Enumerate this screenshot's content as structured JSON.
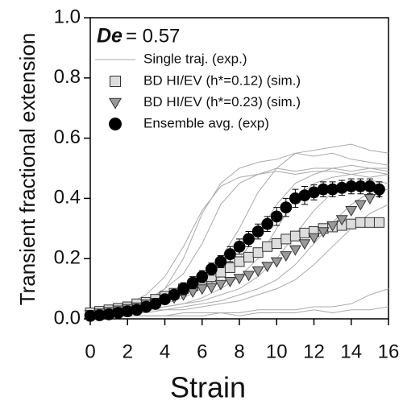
{
  "chart_data": {
    "type": "line",
    "annotation_symbol": "De",
    "annotation_value": "= 0.57",
    "xlabel": "Strain",
    "ylabel": "Transient fractional extension",
    "xlim": [
      0,
      16
    ],
    "ylim": [
      0,
      1
    ],
    "xticks": [
      0,
      2,
      4,
      6,
      8,
      10,
      12,
      14,
      16
    ],
    "yticks": [
      {
        "value": 0,
        "label": "0.0"
      },
      {
        "value": 0.2,
        "label": "0.2"
      },
      {
        "value": 0.4,
        "label": "0.4"
      },
      {
        "value": 0.6,
        "label": "0.6"
      },
      {
        "value": 0.8,
        "label": "0.8"
      },
      {
        "value": 1,
        "label": "1.0"
      }
    ],
    "trajectories": {
      "name": "Single traj. (exp.)",
      "color": "#aaaaaa",
      "x": [
        0,
        1,
        2,
        3,
        4,
        5,
        6,
        7,
        8,
        9,
        10,
        11,
        12,
        13,
        14,
        15,
        16
      ],
      "lines": [
        [
          0.01,
          0.02,
          0.03,
          0.05,
          0.1,
          0.2,
          0.35,
          0.45,
          0.5,
          0.52,
          0.53,
          0.55,
          0.54,
          0.55,
          0.53,
          0.52,
          0.51
        ],
        [
          0.02,
          0.02,
          0.04,
          0.06,
          0.1,
          0.15,
          0.25,
          0.38,
          0.45,
          0.48,
          0.5,
          0.49,
          0.5,
          0.5,
          0.49,
          0.5,
          0.49
        ],
        [
          0.01,
          0.02,
          0.03,
          0.04,
          0.06,
          0.09,
          0.14,
          0.2,
          0.3,
          0.42,
          0.5,
          0.55,
          0.56,
          0.57,
          0.58,
          0.56,
          0.55
        ],
        [
          0.02,
          0.03,
          0.03,
          0.04,
          0.05,
          0.07,
          0.1,
          0.14,
          0.2,
          0.28,
          0.38,
          0.45,
          0.48,
          0.5,
          0.51,
          0.5,
          0.5
        ],
        [
          0.01,
          0.01,
          0.02,
          0.03,
          0.04,
          0.05,
          0.07,
          0.1,
          0.14,
          0.2,
          0.3,
          0.4,
          0.45,
          0.47,
          0.48,
          0.47,
          0.48
        ],
        [
          0.02,
          0.02,
          0.03,
          0.03,
          0.04,
          0.05,
          0.06,
          0.08,
          0.1,
          0.14,
          0.2,
          0.28,
          0.36,
          0.42,
          0.45,
          0.46,
          0.45
        ],
        [
          0.01,
          0.02,
          0.02,
          0.03,
          0.03,
          0.04,
          0.05,
          0.06,
          0.08,
          0.1,
          0.13,
          0.18,
          0.25,
          0.32,
          0.38,
          0.42,
          0.43
        ],
        [
          0.01,
          0.01,
          0.02,
          0.02,
          0.03,
          0.03,
          0.04,
          0.05,
          0.06,
          0.08,
          0.1,
          0.13,
          0.18,
          0.24,
          0.3,
          0.35,
          0.38
        ],
        [
          0.0,
          0.01,
          0.01,
          0.01,
          0.01,
          0.02,
          0.02,
          0.02,
          0.02,
          0.03,
          0.03,
          0.03,
          0.04,
          0.04,
          0.05,
          0.08,
          0.1
        ],
        [
          0.01,
          0.01,
          0.01,
          0.01,
          0.01,
          0.01,
          0.01,
          0.02,
          0.01,
          0.02,
          0.02,
          0.02,
          0.03,
          0.02,
          0.03,
          0.03,
          0.04
        ],
        [
          0.02,
          0.03,
          0.05,
          0.08,
          0.14,
          0.24,
          0.36,
          0.44,
          0.47,
          0.48,
          0.49,
          0.48,
          0.49,
          0.49,
          0.48,
          0.49,
          0.48
        ]
      ]
    },
    "series": [
      {
        "name": "BD HI/EV (h*=0.12) (sim.)",
        "marker": "square",
        "color": "#dddddd",
        "edgecolor": "#333333",
        "x": [
          0,
          0.5,
          1,
          1.5,
          2,
          2.5,
          3,
          3.5,
          4,
          4.5,
          5,
          5.5,
          6,
          6.5,
          7,
          7.5,
          8,
          8.5,
          9,
          9.5,
          10,
          10.5,
          11,
          11.5,
          12,
          12.5,
          13,
          13.5,
          14,
          14.5,
          15,
          15.5
        ],
        "values": [
          0.02,
          0.025,
          0.03,
          0.035,
          0.04,
          0.05,
          0.055,
          0.065,
          0.075,
          0.085,
          0.1,
          0.11,
          0.125,
          0.14,
          0.155,
          0.17,
          0.19,
          0.205,
          0.22,
          0.24,
          0.25,
          0.265,
          0.275,
          0.285,
          0.29,
          0.3,
          0.305,
          0.31,
          0.315,
          0.32,
          0.32,
          0.32
        ]
      },
      {
        "name": "BD HI/EV (h*=0.23) (sim.)",
        "marker": "triangle",
        "color": "#999999",
        "edgecolor": "#333333",
        "x": [
          0,
          0.5,
          1,
          1.5,
          2,
          2.5,
          3,
          3.5,
          4,
          4.5,
          5,
          5.5,
          6,
          6.5,
          7,
          7.5,
          8,
          8.5,
          9,
          9.5,
          10,
          10.5,
          11,
          11.5,
          12,
          12.5,
          13,
          13.5,
          14,
          14.5,
          15,
          15.5
        ],
        "values": [
          0.015,
          0.02,
          0.025,
          0.03,
          0.035,
          0.04,
          0.05,
          0.055,
          0.065,
          0.07,
          0.08,
          0.09,
          0.1,
          0.105,
          0.115,
          0.125,
          0.135,
          0.145,
          0.16,
          0.175,
          0.19,
          0.21,
          0.23,
          0.25,
          0.27,
          0.29,
          0.31,
          0.33,
          0.36,
          0.38,
          0.4,
          0.42
        ]
      },
      {
        "name": "Ensemble avg. (exp)",
        "marker": "circle",
        "color": "#000000",
        "edgecolor": "#000000",
        "x": [
          0,
          0.5,
          1,
          1.5,
          2,
          2.5,
          3,
          3.5,
          4,
          4.5,
          5,
          5.5,
          6,
          6.5,
          7,
          7.5,
          8,
          8.5,
          9,
          9.5,
          10,
          10.5,
          11,
          11.5,
          12,
          12.5,
          13,
          13.5,
          14,
          14.5,
          15,
          15.5
        ],
        "values": [
          0.01,
          0.012,
          0.015,
          0.02,
          0.025,
          0.03,
          0.04,
          0.05,
          0.065,
          0.08,
          0.1,
          0.12,
          0.14,
          0.165,
          0.19,
          0.215,
          0.24,
          0.265,
          0.29,
          0.315,
          0.34,
          0.37,
          0.4,
          0.41,
          0.42,
          0.43,
          0.43,
          0.435,
          0.44,
          0.44,
          0.44,
          0.43
        ],
        "errors": [
          0.01,
          0.01,
          0.01,
          0.01,
          0.01,
          0.01,
          0.01,
          0.015,
          0.015,
          0.015,
          0.02,
          0.02,
          0.02,
          0.02,
          0.02,
          0.025,
          0.025,
          0.025,
          0.025,
          0.025,
          0.03,
          0.03,
          0.03,
          0.03,
          0.025,
          0.025,
          0.025,
          0.025,
          0.025,
          0.025,
          0.025,
          0.025
        ]
      }
    ]
  }
}
